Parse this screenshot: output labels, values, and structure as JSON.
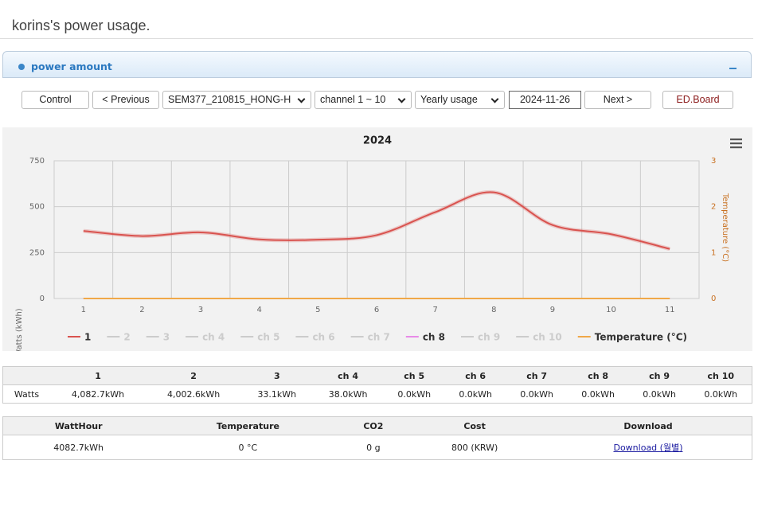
{
  "header": {
    "title": "korins's power usage."
  },
  "panel": {
    "title": "power amount"
  },
  "toolbar": {
    "control": "Control",
    "previous": "< Previous",
    "device": "SEM377_210815_HONG-H",
    "channel": "channel 1 ~ 10",
    "period": "Yearly usage",
    "date": "2024-11-26",
    "next": "Next >",
    "board": "ED.Board"
  },
  "chart_data": {
    "type": "line",
    "title": "2024",
    "y_label": "Watts (kWh)",
    "y2_label": "Temperature (°C)",
    "categories": [
      "1",
      "2",
      "3",
      "4",
      "5",
      "6",
      "7",
      "8",
      "9",
      "10",
      "11"
    ],
    "ylim": [
      0,
      750
    ],
    "yticks": [
      0,
      250,
      500,
      750
    ],
    "y2lim": [
      0,
      3
    ],
    "y2ticks": [
      0,
      1,
      2,
      3
    ],
    "grid": true,
    "legend": "bottom",
    "series": [
      {
        "name": "1",
        "color": "#d9534f",
        "visible": true,
        "values": [
          368,
          340,
          360,
          322,
          320,
          345,
          470,
          578,
          400,
          350,
          270
        ]
      },
      {
        "name": "2",
        "visible": false,
        "values": [
          null,
          null,
          null,
          null,
          null,
          null,
          null,
          null,
          null,
          null,
          null
        ]
      },
      {
        "name": "3",
        "visible": false,
        "values": [
          null,
          null,
          null,
          null,
          null,
          null,
          null,
          null,
          null,
          null,
          null
        ]
      },
      {
        "name": "ch 4",
        "visible": false,
        "values": [
          null,
          null,
          null,
          null,
          null,
          null,
          null,
          null,
          null,
          null,
          null
        ]
      },
      {
        "name": "ch 5",
        "visible": false,
        "values": [
          null,
          null,
          null,
          null,
          null,
          null,
          null,
          null,
          null,
          null,
          null
        ]
      },
      {
        "name": "ch 6",
        "visible": false,
        "values": [
          null,
          null,
          null,
          null,
          null,
          null,
          null,
          null,
          null,
          null,
          null
        ]
      },
      {
        "name": "ch 7",
        "visible": false,
        "values": [
          null,
          null,
          null,
          null,
          null,
          null,
          null,
          null,
          null,
          null,
          null
        ]
      },
      {
        "name": "ch 8",
        "color": "#e88be8",
        "visible": true,
        "values": [
          0,
          0,
          0,
          0,
          0,
          0,
          0,
          0,
          0,
          0,
          0
        ]
      },
      {
        "name": "ch 9",
        "visible": false,
        "values": [
          null,
          null,
          null,
          null,
          null,
          null,
          null,
          null,
          null,
          null,
          null
        ]
      },
      {
        "name": "ch 10",
        "visible": false,
        "values": [
          null,
          null,
          null,
          null,
          null,
          null,
          null,
          null,
          null,
          null,
          null
        ]
      },
      {
        "name": "Temperature (°C)",
        "color": "#f0a848",
        "visible": true,
        "axis": "y2",
        "values": [
          0,
          0,
          0,
          0,
          0,
          0,
          0,
          0,
          0,
          0,
          0
        ]
      }
    ]
  },
  "channel_table": {
    "columns": [
      "1",
      "2",
      "3",
      "ch 4",
      "ch 5",
      "ch 6",
      "ch 7",
      "ch 8",
      "ch 9",
      "ch 10"
    ],
    "row_label": "Watts",
    "values": [
      "4,082.7kWh",
      "4,002.6kWh",
      "33.1kWh",
      "38.0kWh",
      "0.0kWh",
      "0.0kWh",
      "0.0kWh",
      "0.0kWh",
      "0.0kWh",
      "0.0kWh"
    ]
  },
  "summary_table": {
    "columns": [
      "WattHour",
      "Temperature",
      "CO2",
      "Cost",
      "Download"
    ],
    "values": [
      "4082.7kWh",
      "0 °C",
      "0 g",
      "800 (KRW)",
      "Download (월별)"
    ]
  }
}
